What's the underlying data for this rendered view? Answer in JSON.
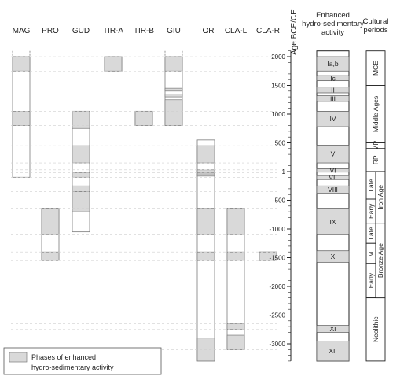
{
  "chart_data": {
    "type": "timeline",
    "ylabel": "Age BCE/CE",
    "ylim": [
      -3300,
      2100
    ],
    "y_ticks": [
      2000,
      1500,
      1000,
      500,
      1,
      -500,
      -1000,
      -1500,
      -2000,
      -2500,
      -3000
    ],
    "columns": [
      {
        "name": "MAG",
        "extent": [
          -100,
          2100
        ],
        "phases": [
          [
            1750,
            2000
          ],
          [
            800,
            1050
          ]
        ]
      },
      {
        "name": "PRO",
        "extent": [
          -1550,
          -650
        ],
        "phases": [
          [
            -1100,
            -650
          ],
          [
            -1550,
            -1400
          ]
        ]
      },
      {
        "name": "GUD",
        "extent": [
          -1050,
          1050
        ],
        "phases": [
          [
            750,
            1050
          ],
          [
            150,
            450
          ],
          [
            -100,
            -20
          ],
          [
            -350,
            -250
          ],
          [
            -700,
            -350
          ]
        ]
      },
      {
        "name": "TIR-A",
        "extent": [
          1750,
          2000
        ],
        "phases": [
          [
            1750,
            2000
          ]
        ]
      },
      {
        "name": "TIR-B",
        "extent": [
          800,
          1050
        ],
        "phases": [
          [
            800,
            1050
          ]
        ]
      },
      {
        "name": "GIU",
        "extent": [
          800,
          2100
        ],
        "phases": [
          [
            1750,
            2000
          ],
          [
            1400,
            1450
          ],
          [
            1300,
            1350
          ],
          [
            800,
            1250
          ]
        ]
      },
      {
        "name": "TOR",
        "extent": [
          -3300,
          550
        ],
        "phases": [
          [
            150,
            450
          ],
          [
            -20,
            30
          ],
          [
            -80,
            -40
          ],
          [
            -1100,
            -650
          ],
          [
            -1550,
            -1400
          ],
          [
            -3300,
            -2900
          ]
        ]
      },
      {
        "name": "CLA-L",
        "extent": [
          -3100,
          -650
        ],
        "phases": [
          [
            -1100,
            -650
          ],
          [
            -1550,
            -1400
          ],
          [
            -2750,
            -2650
          ],
          [
            -3100,
            -2850
          ]
        ]
      },
      {
        "name": "CLA-R",
        "extent": [
          -1550,
          -1400
        ],
        "phases": [
          [
            -1550,
            -1400
          ]
        ]
      }
    ],
    "enhanced": {
      "title": [
        "Enhanced",
        "hydro-sedimentary",
        "activity"
      ],
      "phases": [
        {
          "label": "Ia,b",
          "range": [
            1750,
            2000
          ]
        },
        {
          "label": "Ic",
          "range": [
            1580,
            1670
          ]
        },
        {
          "label": "II",
          "range": [
            1370,
            1470
          ]
        },
        {
          "label": "III",
          "range": [
            1220,
            1320
          ]
        },
        {
          "label": "IV",
          "range": [
            780,
            1050
          ]
        },
        {
          "label": "V",
          "range": [
            150,
            460
          ]
        },
        {
          "label": "VI",
          "range": [
            -10,
            50
          ]
        },
        {
          "label": "VII",
          "range": [
            -140,
            -70
          ]
        },
        {
          "label": "VIII",
          "range": [
            -380,
            -250
          ]
        },
        {
          "label": "IX",
          "range": [
            -1100,
            -650
          ]
        },
        {
          "label": "X",
          "range": [
            -1580,
            -1380
          ]
        },
        {
          "label": "XI",
          "range": [
            -2800,
            -2680
          ]
        },
        {
          "label": "XII",
          "range": [
            -3300,
            -2950
          ]
        }
      ]
    },
    "cultural_periods": {
      "title": [
        "Cultural",
        "periods"
      ],
      "periods": [
        {
          "label": "MCE",
          "range": [
            1500,
            2100
          ]
        },
        {
          "label": "Middle Ages",
          "range": [
            500,
            1500
          ]
        },
        {
          "label": "MP",
          "range": [
            400,
            500
          ]
        },
        {
          "label": "RP",
          "range": [
            1,
            400
          ]
        },
        {
          "label": "Late",
          "range": [
            -480,
            1
          ]
        },
        {
          "label": "Early",
          "range": [
            -900,
            -480
          ]
        },
        {
          "label": "Late",
          "range": [
            -1250,
            -900
          ]
        },
        {
          "label": "M.",
          "range": [
            -1600,
            -1250
          ]
        },
        {
          "label": "Early",
          "range": [
            -2200,
            -1600
          ]
        },
        {
          "label": "Neolithic",
          "range": [
            -3300,
            -2200
          ]
        }
      ],
      "groups": [
        {
          "label": "Iron Age",
          "range": [
            -900,
            1
          ]
        },
        {
          "label": "Bronze Age",
          "range": [
            -2200,
            -900
          ]
        }
      ]
    },
    "legend": {
      "label": [
        "Phases of enhanced",
        "hydro-sedimentary activity"
      ],
      "position": "bottom-left"
    }
  }
}
